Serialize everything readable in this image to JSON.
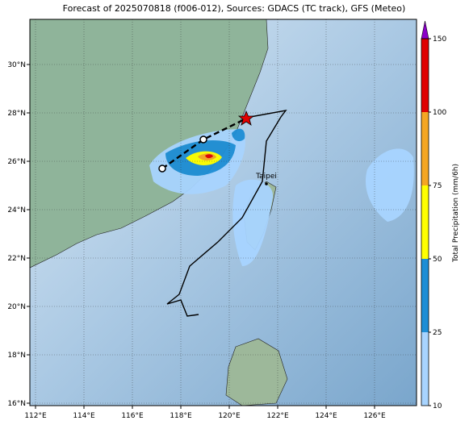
{
  "title": "Forecast of 2025070818 (f006-012), Sources: GDACS (TC track), GFS (Meteo)",
  "lon_ticks": [
    {
      "value": 112,
      "label": "112°E"
    },
    {
      "value": 114,
      "label": "114°E"
    },
    {
      "value": 116,
      "label": "116°E"
    },
    {
      "value": 118,
      "label": "118°E"
    },
    {
      "value": 120,
      "label": "120°E"
    },
    {
      "value": 122,
      "label": "122°E"
    },
    {
      "value": 124,
      "label": "124°E"
    },
    {
      "value": 126,
      "label": "126°E"
    }
  ],
  "lat_ticks": [
    {
      "value": 30,
      "label": "30°N"
    },
    {
      "value": 28,
      "label": "28°N"
    },
    {
      "value": 26,
      "label": "26°N"
    },
    {
      "value": 24,
      "label": "24°N"
    },
    {
      "value": 22,
      "label": "22°N"
    },
    {
      "value": 20,
      "label": "20°N"
    },
    {
      "value": 18,
      "label": "18°N"
    },
    {
      "value": 16,
      "label": "16°N"
    }
  ],
  "colorbar": {
    "label": "Total Precipitation (mm/6h)",
    "ticks": [
      10,
      25,
      50,
      75,
      100,
      150
    ],
    "colors": [
      "#a8d4ff",
      "#1e8ed6",
      "#ffff00",
      "#f5a623",
      "#e00000"
    ],
    "extend_color": "#8a00c8"
  },
  "city": "Taipei"
}
